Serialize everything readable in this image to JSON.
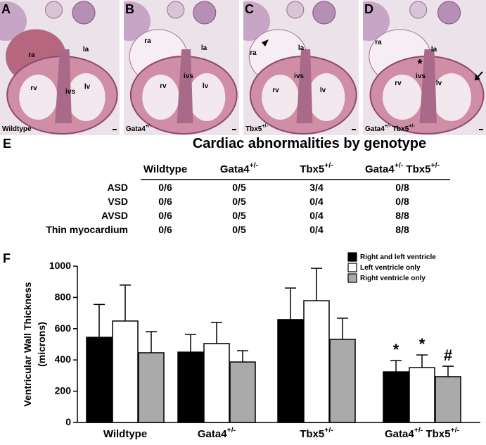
{
  "panels": [
    {
      "letter": "A",
      "labels": [
        "ra",
        "la",
        "ivs",
        "rv",
        "lv"
      ],
      "caption": "Wildtype"
    },
    {
      "letter": "B",
      "labels": [
        "ra",
        "la",
        "ivs",
        "rv",
        "lv"
      ],
      "caption": "Gata4+/-"
    },
    {
      "letter": "C",
      "labels": [
        "ra",
        "la",
        "ivs",
        "rv",
        "lv"
      ],
      "caption": "Tbx5+/-"
    },
    {
      "letter": "D",
      "labels": [
        "ra",
        "la",
        "ivs",
        "rv",
        "lv"
      ],
      "caption": "Gata4+/- Tbx5+/-",
      "annotation": "*"
    }
  ],
  "table": {
    "letter": "E",
    "title": "Cardiac abnormalities by genotype",
    "columns": [
      "Wildtype",
      "Gata4+/-",
      "Tbx5+/-",
      "Gata4+/- Tbx5+/-"
    ],
    "rows": [
      [
        "ASD",
        "0/6",
        "0/5",
        "3/4",
        "0/8"
      ],
      [
        "VSD",
        "0/6",
        "0/5",
        "0/4",
        "0/8"
      ],
      [
        "AVSD",
        "0/6",
        "0/5",
        "0/4",
        "8/8"
      ],
      [
        "Thin myocardium",
        "0/6",
        "0/5",
        "0/4",
        "8/8"
      ]
    ]
  },
  "chart_data": {
    "type": "bar",
    "letter": "F",
    "ylabel": [
      "Ventricular Wall Thickness",
      "(microns)"
    ],
    "categories": [
      "Wildtype",
      "Gata4+/-",
      "Tbx5+/-",
      "Gata4+/- Tbx5+/-"
    ],
    "series": [
      {
        "name": "Right and left ventricle",
        "color": "#000000",
        "values": [
          545,
          450,
          658,
          324
        ],
        "errors": [
          210,
          113,
          202,
          72
        ],
        "markers": [
          null,
          null,
          null,
          "*"
        ]
      },
      {
        "name": "Left ventricle only",
        "color": "#ffffff",
        "values": [
          649,
          505,
          779,
          351
        ],
        "errors": [
          230,
          135,
          207,
          81
        ],
        "markers": [
          null,
          null,
          null,
          "*"
        ]
      },
      {
        "name": "Right ventricle only",
        "color": "#aaaaaa",
        "values": [
          446,
          387,
          532,
          293
        ],
        "errors": [
          135,
          72,
          135,
          67
        ],
        "markers": [
          null,
          null,
          null,
          "#"
        ]
      }
    ],
    "ylim": [
      0,
      1000
    ],
    "yticks": [
      0,
      200,
      400,
      600,
      800,
      1000
    ],
    "legend": "top-right"
  }
}
